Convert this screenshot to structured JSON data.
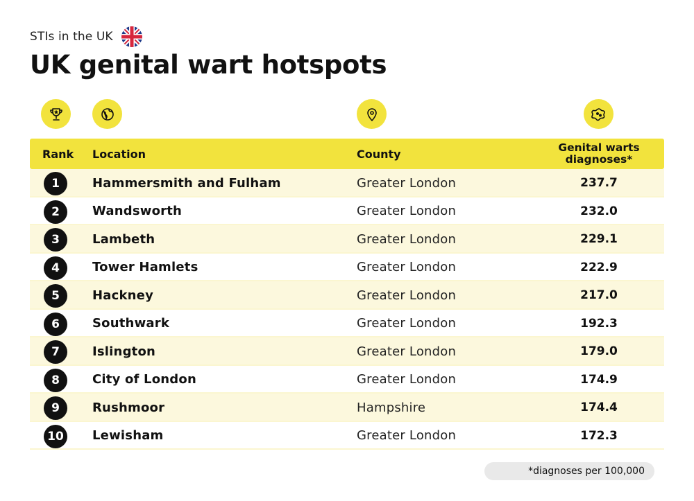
{
  "kicker": "STIs in the UK",
  "flag_icon": "uk-flag-icon",
  "accent_color": "#f2e33d",
  "chart_data": {
    "type": "table",
    "title": "UK genital wart hotspots",
    "columns": [
      "Rank",
      "Location",
      "County",
      "Genital warts diagnoses*"
    ],
    "column_icons": [
      "trophy-icon",
      "globe-icon",
      "map-pin-icon",
      "virus-icon"
    ],
    "rows": [
      {
        "rank": "1",
        "location": "Hammersmith and Fulham",
        "county": "Greater London",
        "value": "237.7"
      },
      {
        "rank": "2",
        "location": "Wandsworth",
        "county": "Greater London",
        "value": "232.0"
      },
      {
        "rank": "3",
        "location": "Lambeth",
        "county": "Greater London",
        "value": "229.1"
      },
      {
        "rank": "4",
        "location": "Tower Hamlets",
        "county": "Greater London",
        "value": "222.9"
      },
      {
        "rank": "5",
        "location": "Hackney",
        "county": "Greater London",
        "value": "217.0"
      },
      {
        "rank": "6",
        "location": "Southwark",
        "county": "Greater London",
        "value": "192.3"
      },
      {
        "rank": "7",
        "location": "Islington",
        "county": "Greater London",
        "value": "179.0"
      },
      {
        "rank": "8",
        "location": "City of London",
        "county": "Greater London",
        "value": "174.9"
      },
      {
        "rank": "9",
        "location": "Rushmoor",
        "county": "Hampshire",
        "value": "174.4"
      },
      {
        "rank": "10",
        "location": "Lewisham",
        "county": "Greater London",
        "value": "172.3"
      }
    ],
    "footnote": "*diagnoses per 100,000"
  }
}
